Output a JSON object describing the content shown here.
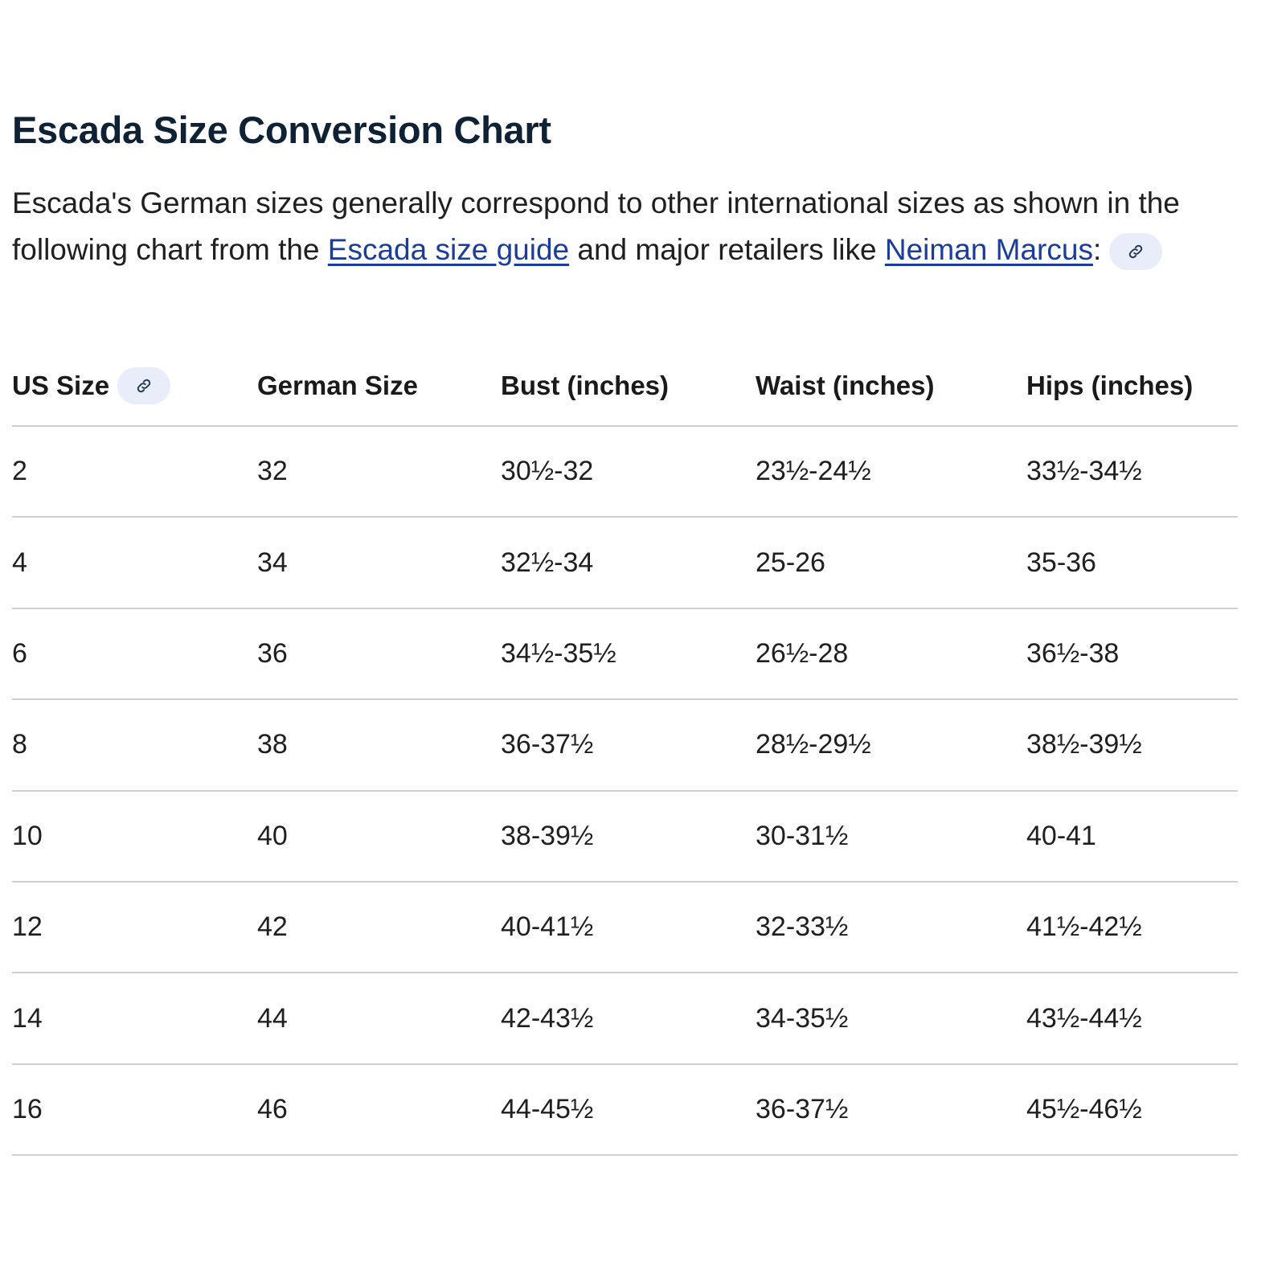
{
  "header": {
    "title": "Escada Size Conversion Chart"
  },
  "intro": [
    {
      "text": "Escada's German sizes generally correspond to other international sizes as shown in the following chart from the "
    },
    {
      "link": "Escada size guide"
    },
    {
      "text": " and major retailers like "
    },
    {
      "link": "Neiman Marcus"
    },
    {
      "text": ":"
    }
  ],
  "table": {
    "columns": [
      "US Size",
      "German Size",
      "Bust (inches)",
      "Waist (inches)",
      "Hips (inches)"
    ],
    "rows": [
      [
        "2",
        "32",
        "30½-32",
        "23½-24½",
        "33½-34½"
      ],
      [
        "4",
        "34",
        "32½-34",
        "25-26",
        "35-36"
      ],
      [
        "6",
        "36",
        "34½-35½",
        "26½-28",
        "36½-38"
      ],
      [
        "8",
        "38",
        "36-37½",
        "28½-29½",
        "38½-39½"
      ],
      [
        "10",
        "40",
        "38-39½",
        "30-31½",
        "40-41"
      ],
      [
        "12",
        "42",
        "40-41½",
        "32-33½",
        "41½-42½"
      ],
      [
        "14",
        "44",
        "42-43½",
        "34-35½",
        "43½-44½"
      ],
      [
        "16",
        "46",
        "44-45½",
        "36-37½",
        "45½-46½"
      ]
    ]
  }
}
